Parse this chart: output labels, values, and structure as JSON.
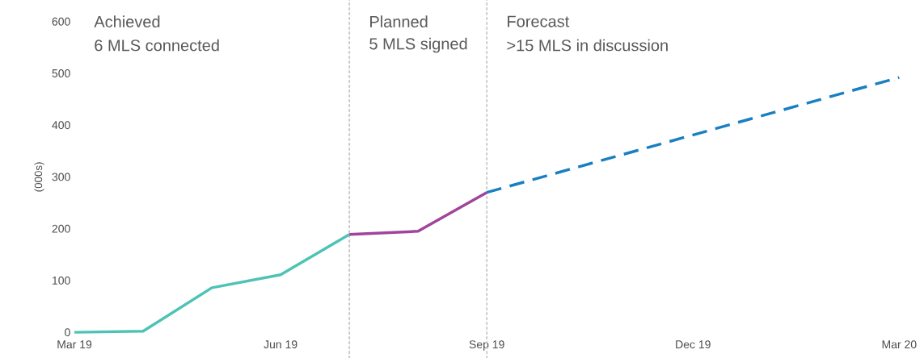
{
  "chart_data": {
    "type": "line",
    "ylabel": "(000s)",
    "series": [
      {
        "color": "#4ec3b5",
        "x": [
          "2019-03",
          "2019-04",
          "2019-05",
          "2019-06",
          "2019-07"
        ],
        "values": [
          0,
          2,
          86,
          111,
          189
        ]
      },
      {
        "color": "#a0449c",
        "x": [
          "2019-07",
          "2019-08",
          "2019-09"
        ],
        "values": [
          189,
          195,
          270
        ]
      },
      {
        "color": "#1a7fc1",
        "line_style": "dashed",
        "x": [
          "2019-09",
          "2020-03"
        ],
        "values": [
          270,
          492
        ]
      }
    ],
    "xlim": [
      "2019-03",
      "2020-03"
    ],
    "xticks": [
      {
        "value": "2019-03",
        "label": "Mar 19"
      },
      {
        "value": "2019-06",
        "label": "Jun 19"
      },
      {
        "value": "2019-09",
        "label": "Sep 19"
      },
      {
        "value": "2019-12",
        "label": "Dec 19"
      },
      {
        "value": "2020-03",
        "label": "Mar 20"
      }
    ],
    "ylim": [
      0,
      600
    ],
    "yticks": [
      0,
      100,
      200,
      300,
      400,
      500,
      600
    ],
    "ref_lines": [
      {
        "axis": "x",
        "value": "2019-07",
        "color": "#cccccc",
        "line_style": "dotted"
      },
      {
        "axis": "x",
        "value": "2019-09",
        "color": "#cccccc",
        "line_style": "dotted"
      }
    ],
    "annotations": [
      "Achieved",
      "6 MLS connected",
      "Planned",
      "5 MLS signed",
      "Forecast",
      ">15 MLS in discussion"
    ]
  }
}
